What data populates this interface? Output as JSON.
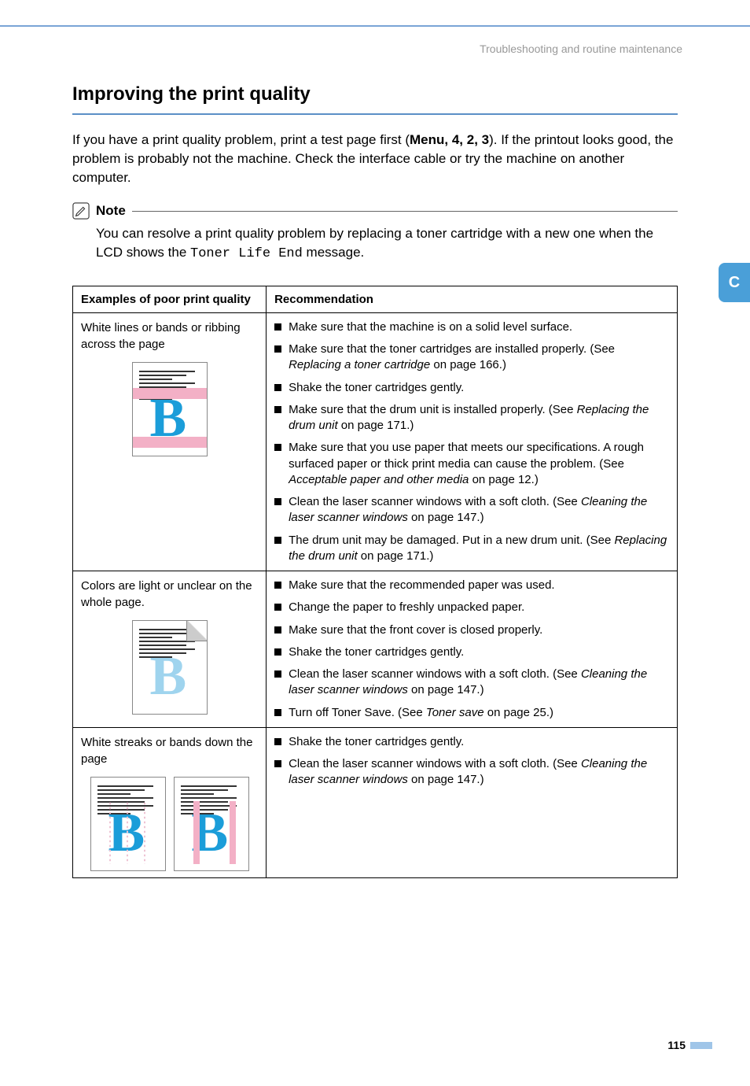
{
  "header": {
    "breadcrumb": "Troubleshooting and routine maintenance"
  },
  "side_tab": {
    "label": "C"
  },
  "section": {
    "title": "Improving the print quality",
    "intro_parts": {
      "before_menu": "If you have a print quality problem, print a test page first (",
      "menu_bold": "Menu",
      "seq": ", 4, 2, 3",
      "after_seq": "). If the printout looks good, the problem is probably not the machine. Check the interface cable or try the machine on another computer."
    }
  },
  "note": {
    "label": "Note",
    "body_prefix": "You can resolve a print quality problem by replacing a toner cartridge with a new one when the LCD shows the ",
    "code": "Toner Life End",
    "body_suffix": " message."
  },
  "table": {
    "header_left": "Examples of poor print quality",
    "header_right": "Recommendation",
    "rows": [
      {
        "example": "White lines or bands or ribbing across the page",
        "items": [
          {
            "text": "Make sure that the machine is on a solid level surface."
          },
          {
            "prefix": "Make sure that the toner cartridges are installed properly. (See ",
            "italic": "Replacing a toner cartridge",
            "suffix": " on page 166.)"
          },
          {
            "text": "Shake the toner cartridges gently."
          },
          {
            "prefix": "Make sure that the drum unit is installed properly. (See ",
            "italic": "Replacing the drum unit",
            "suffix": " on page 171.)"
          },
          {
            "prefix": "Make sure that you use paper that meets our specifications. A rough surfaced paper or thick print media can cause the problem. (See ",
            "italic": "Acceptable paper and other media",
            "suffix": " on page 12.)"
          },
          {
            "prefix": "Clean the laser scanner windows with a soft cloth. (See ",
            "italic": "Cleaning the laser scanner windows",
            "suffix": " on page 147.)"
          },
          {
            "prefix": "The drum unit may be damaged. Put in a new drum unit. (See ",
            "italic": "Replacing the drum unit",
            "suffix": " on page 171.)"
          }
        ]
      },
      {
        "example": "Colors are light or unclear on the whole page.",
        "items": [
          {
            "text": "Make sure that the recommended paper was used."
          },
          {
            "text": "Change the paper to freshly unpacked paper."
          },
          {
            "text": "Make sure that the front cover is closed properly."
          },
          {
            "text": "Shake the toner cartridges gently."
          },
          {
            "prefix": "Clean the laser scanner windows with a soft cloth. (See ",
            "italic": "Cleaning the laser scanner windows",
            "suffix": " on page 147.)"
          },
          {
            "prefix": "Turn off Toner Save. (See ",
            "italic": "Toner save",
            "suffix": " on page 25.)"
          }
        ]
      },
      {
        "example": "White streaks or bands down the page",
        "items": [
          {
            "text": "Shake the toner cartridges gently."
          },
          {
            "prefix": "Clean the laser scanner windows with a soft cloth. (See ",
            "italic": "Cleaning the laser scanner windows",
            "suffix": " on page 147.)"
          }
        ]
      }
    ]
  },
  "page_number": "115"
}
